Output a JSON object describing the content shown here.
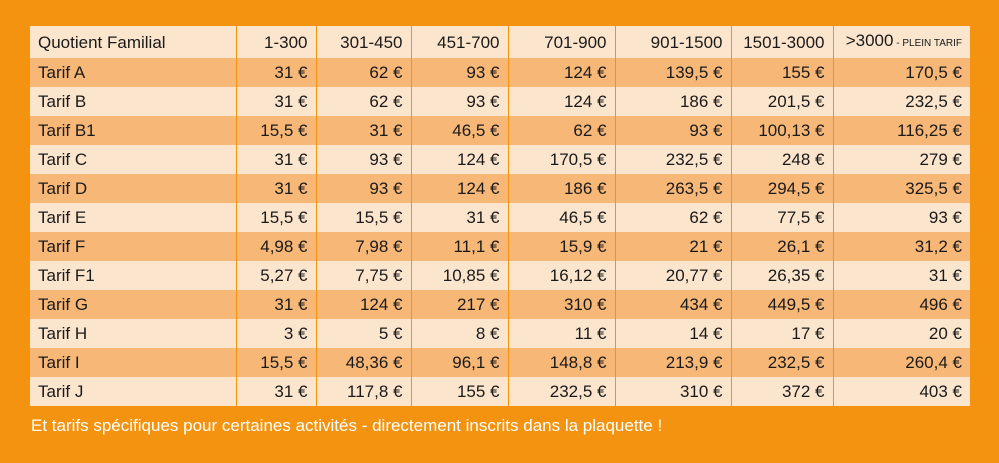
{
  "table": {
    "headers": [
      "Quotient Familial",
      "1-300",
      "301-450",
      "451-700",
      "701-900",
      "901-1500",
      "1501-3000",
      ">3000"
    ],
    "last_header_suffix": " - PLEIN TARIF",
    "rows": [
      [
        "Tarif A",
        "31 €",
        "62 €",
        "93 €",
        "124 €",
        "139,5 €",
        "155 €",
        "170,5 €"
      ],
      [
        "Tarif B",
        "31 €",
        "62 €",
        "93 €",
        "124 €",
        "186 €",
        "201,5 €",
        "232,5 €"
      ],
      [
        "Tarif B1",
        "15,5 €",
        "31 €",
        "46,5 €",
        "62 €",
        "93 €",
        "100,13 €",
        "116,25 €"
      ],
      [
        "Tarif C",
        "31 €",
        "93 €",
        "124 €",
        "170,5 €",
        "232,5 €",
        "248 €",
        "279 €"
      ],
      [
        "Tarif D",
        "31 €",
        "93 €",
        "124 €",
        "186 €",
        "263,5 €",
        "294,5 €",
        "325,5 €"
      ],
      [
        "Tarif E",
        "15,5 €",
        "15,5 €",
        "31 €",
        "46,5 €",
        "62 €",
        "77,5 €",
        "93 €"
      ],
      [
        "Tarif F",
        "4,98 €",
        "7,98 €",
        "11,1 €",
        "15,9 €",
        "21 €",
        "26,1 €",
        "31,2 €"
      ],
      [
        "Tarif F1",
        "5,27 €",
        "7,75 €",
        "10,85 €",
        "16,12 €",
        "20,77 €",
        "26,35 €",
        "31 €"
      ],
      [
        "Tarif G",
        "31 €",
        "124 €",
        "217 €",
        "310 €",
        "434 €",
        "449,5 €",
        "496 €"
      ],
      [
        "Tarif H",
        "3 €",
        "5 €",
        "8 €",
        "11 €",
        "14 €",
        "17 €",
        "20 €"
      ],
      [
        "Tarif I",
        "15,5 €",
        "48,36 €",
        "96,1 €",
        "148,8 €",
        "213,9 €",
        "232,5 €",
        "260,4 €"
      ],
      [
        "Tarif J",
        "31 €",
        "117,8 €",
        "155 €",
        "232,5 €",
        "310 €",
        "372 €",
        "403 €"
      ]
    ]
  },
  "footer_note": "Et tarifs spécifiques pour certaines activités - directement inscrits dans la plaquette !",
  "colors": {
    "background": "#F3930F",
    "row_light": "#FCE5CD",
    "row_dark": "#F7B777"
  }
}
